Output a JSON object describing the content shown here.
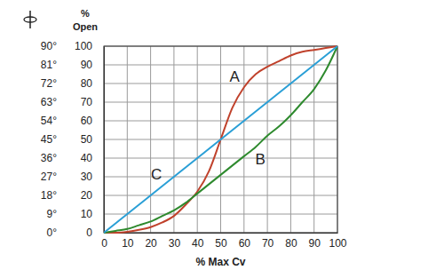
{
  "chart_data": {
    "type": "line",
    "xlabel": "% Max Cv",
    "ylabel": "% Open",
    "x": [
      0,
      5,
      10,
      15,
      20,
      25,
      30,
      35,
      40,
      45,
      50,
      55,
      60,
      65,
      70,
      75,
      80,
      85,
      90,
      95,
      100
    ],
    "series": [
      {
        "color": "#c0422c",
        "values": [
          0,
          0,
          0.5,
          1.5,
          3,
          5.5,
          9,
          15,
          22,
          33,
          50,
          67,
          78,
          85,
          89,
          92,
          95,
          97,
          98,
          99,
          100
        ]
      },
      {
        "color": "#2e8a2e",
        "values": [
          0,
          1,
          2,
          4,
          6,
          9,
          12,
          16,
          21,
          26,
          31,
          36,
          41,
          46,
          52,
          57,
          63,
          70,
          77,
          87,
          100
        ]
      },
      {
        "color": "#2a9fd6",
        "values": [
          0,
          5,
          10,
          15,
          20,
          25,
          30,
          35,
          40,
          45,
          50,
          55,
          60,
          65,
          70,
          75,
          80,
          85,
          90,
          95,
          100
        ]
      }
    ],
    "annotations": [
      {
        "text": "A",
        "x": 56,
        "y": 83
      },
      {
        "text": "B",
        "x": 67,
        "y": 39
      },
      {
        "text": "C",
        "x": 22.5,
        "y": 30.5
      }
    ],
    "xlim": [
      0,
      100
    ],
    "xticks": [
      0,
      10,
      20,
      30,
      40,
      50,
      60,
      70,
      80,
      90,
      100
    ],
    "ylim": [
      0,
      100
    ],
    "yticks": [
      0,
      10,
      20,
      30,
      40,
      50,
      60,
      70,
      80,
      90,
      100
    ],
    "y2lim": [
      0,
      90
    ],
    "y2ticks": [
      {
        "value": 0,
        "label": "0°"
      },
      {
        "value": 9,
        "label": "9°"
      },
      {
        "value": 18,
        "label": "18°"
      },
      {
        "value": 27,
        "label": "27°"
      },
      {
        "value": 36,
        "label": "36°"
      },
      {
        "value": 45,
        "label": "45°"
      },
      {
        "value": 54,
        "label": "54°"
      },
      {
        "value": 63,
        "label": "63°"
      },
      {
        "value": 72,
        "label": "72°"
      },
      {
        "value": 81,
        "label": "81°"
      },
      {
        "value": 90,
        "label": "90°"
      }
    ],
    "grid": true
  }
}
